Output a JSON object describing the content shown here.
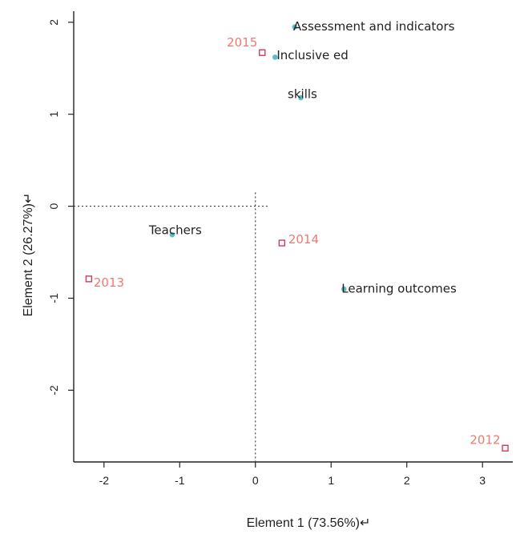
{
  "chart_data": {
    "type": "scatter",
    "xlabel": "Element 1 (73.56%)↵",
    "ylabel": "Element 2 (26.27%)↵",
    "xlim": [
      -2.4,
      3.4
    ],
    "ylim": [
      -2.78,
      2.12
    ],
    "xticks": [
      -2,
      -1,
      0,
      1,
      2,
      3
    ],
    "yticks": [
      -2,
      -1,
      0,
      1,
      2
    ],
    "xtick_labels": [
      "-2",
      "-1",
      "0",
      "1",
      "2",
      "3"
    ],
    "ytick_labels": [
      "-2",
      "-1",
      "0",
      "1",
      "2"
    ],
    "grid": false,
    "reference_lines": {
      "x": 0,
      "y": 0,
      "style": "dotted"
    },
    "series": [
      {
        "marker": "dot",
        "color": "#5bbfc4",
        "label_color": "#222222",
        "points": [
          {
            "label": "Assessment and indicators",
            "x": 0.52,
            "y": 1.95
          },
          {
            "label": "Inclusive ed",
            "x": 0.26,
            "y": 1.62
          },
          {
            "label": "skills",
            "x": 0.6,
            "y": 1.18
          },
          {
            "label": "Teachers",
            "x": -1.1,
            "y": -0.31
          },
          {
            "label": "Learning outcomes",
            "x": 1.17,
            "y": -0.9
          }
        ]
      },
      {
        "marker": "square",
        "color": "#d23a5f",
        "label_color": "#f07a6e",
        "points": [
          {
            "label": "2015",
            "x": 0.09,
            "y": 1.67
          },
          {
            "label": "2014",
            "x": 0.35,
            "y": -0.4
          },
          {
            "label": "2013",
            "x": -2.2,
            "y": -0.79
          },
          {
            "label": "2012",
            "x": 3.3,
            "y": -2.63
          }
        ]
      }
    ]
  }
}
